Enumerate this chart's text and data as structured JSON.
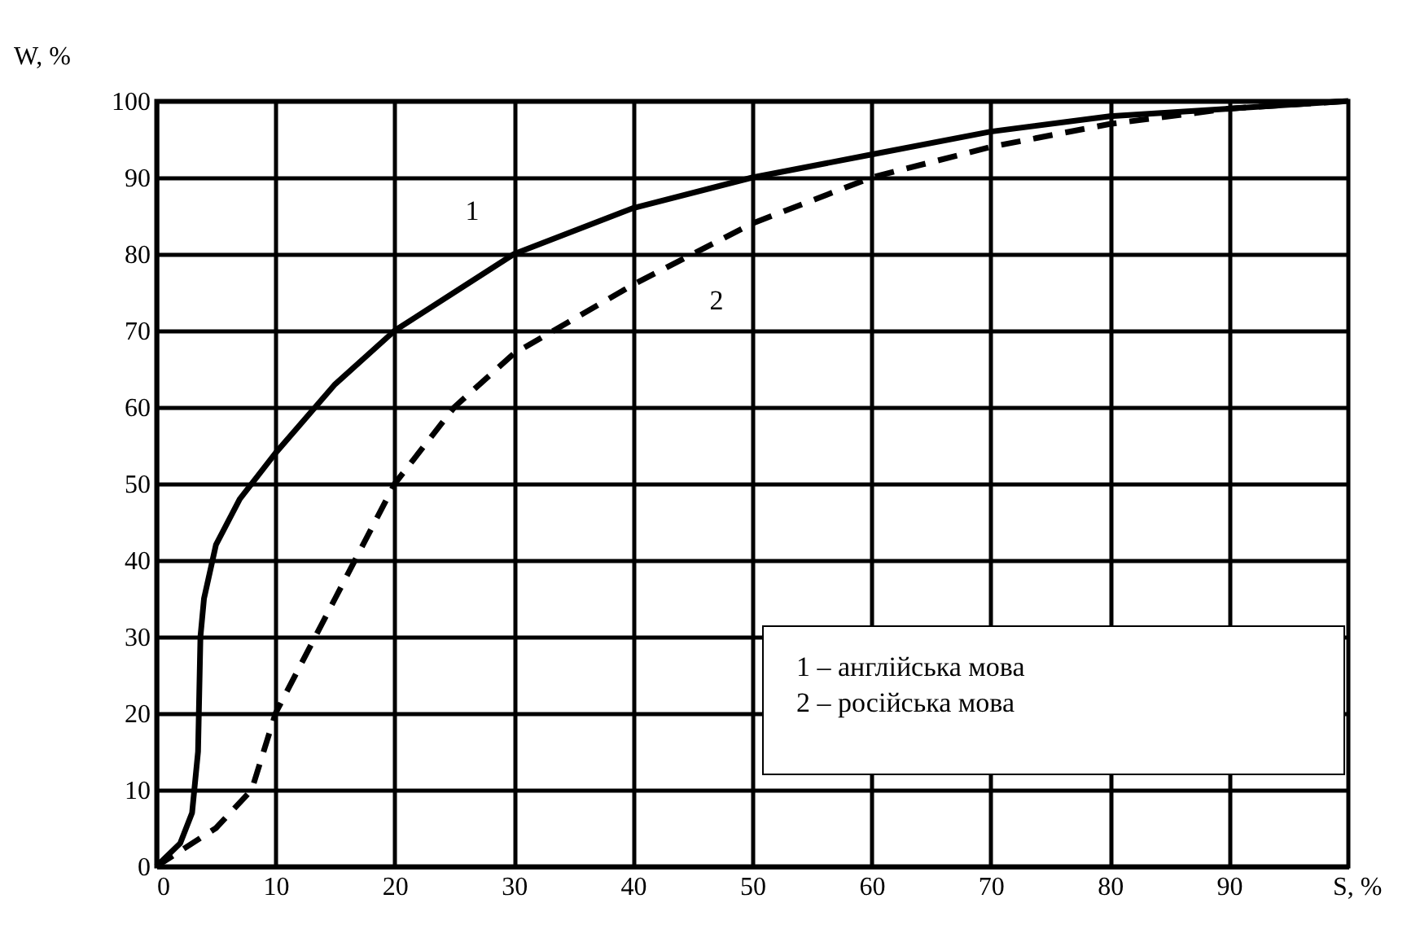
{
  "chart_data": {
    "type": "line",
    "xlabel": "S, %",
    "ylabel": "W, %",
    "xlim": [
      0,
      100
    ],
    "ylim": [
      0,
      100
    ],
    "xticks": [
      0,
      10,
      20,
      30,
      40,
      50,
      60,
      70,
      80,
      90
    ],
    "yticks": [
      0,
      10,
      20,
      30,
      40,
      50,
      60,
      70,
      80,
      90,
      100
    ],
    "grid": true,
    "marker": "none",
    "series": [
      {
        "color": "#000000",
        "line_style": "solid",
        "x": [
          0,
          2,
          3,
          3.5,
          3.7,
          4,
          5,
          7,
          10,
          15,
          20,
          25,
          30,
          40,
          50,
          60,
          70,
          80,
          90,
          100
        ],
        "values": [
          0,
          3,
          7,
          15,
          30,
          35,
          42,
          48,
          54,
          63,
          70,
          75,
          80,
          86,
          90,
          93,
          96,
          98,
          99,
          100
        ]
      },
      {
        "color": "#000000",
        "line_style": "dashed",
        "x": [
          0,
          5,
          8,
          10,
          15,
          20,
          25,
          30,
          40,
          50,
          60,
          70,
          80,
          90,
          100
        ],
        "values": [
          0,
          5,
          10,
          20,
          35,
          50,
          60,
          67,
          76,
          84,
          90,
          94,
          97,
          99,
          100
        ]
      }
    ],
    "annotations": [
      "1",
      "2",
      "1 – англійська мова",
      "2 – російська мова"
    ]
  }
}
